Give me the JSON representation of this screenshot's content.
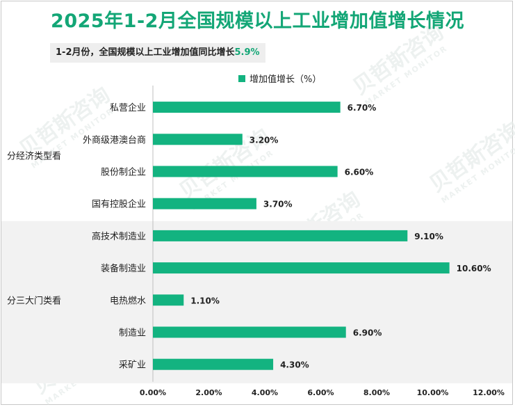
{
  "title": "2025年1-2月全国规模以上工业增加值增长情况",
  "subtitle": {
    "text": "1-2月份，全国规模以上工业增加值同比增长",
    "value": "5.9%"
  },
  "legend": {
    "label": "增加值增长（%）"
  },
  "watermark": {
    "text": "贝哲斯咨询",
    "sub": "MARKET MONITOR"
  },
  "colors": {
    "bar": "#13b380",
    "accent": "#13a676",
    "band": "#f2f2f2"
  },
  "chart_data": {
    "type": "bar",
    "orientation": "horizontal",
    "title": "2025年1-2月全国规模以上工业增加值增长情况",
    "series": [
      {
        "name": "增加值增长（%）",
        "values": [
          6.7,
          3.2,
          6.6,
          3.7,
          9.1,
          10.6,
          1.1,
          6.9,
          4.3
        ]
      }
    ],
    "categories": [
      "私营企业",
      "外商级港澳台商",
      "股份制企业",
      "国有控股企业",
      "高技术制造业",
      "装备制造业",
      "电热燃水",
      "制造业",
      "采矿业"
    ],
    "data_labels": [
      "6.70%",
      "3.20%",
      "6.60%",
      "3.70%",
      "9.10%",
      "10.60%",
      "1.10%",
      "6.90%",
      "4.30%"
    ],
    "groups": [
      {
        "label": "分经济类型看",
        "members": [
          "私营企业",
          "外商级港澳台商",
          "股份制企业",
          "国有控股企业"
        ]
      },
      {
        "label": "分三大门类看",
        "members": [
          "高技术制造业",
          "装备制造业",
          "电热燃水",
          "制造业",
          "采矿业"
        ]
      }
    ],
    "xlim": [
      0,
      12
    ],
    "xticks": [
      "0.00%",
      "2.00%",
      "4.00%",
      "6.00%",
      "8.00%",
      "10.00%",
      "12.00%"
    ],
    "grid": false,
    "legend_position": "top"
  }
}
